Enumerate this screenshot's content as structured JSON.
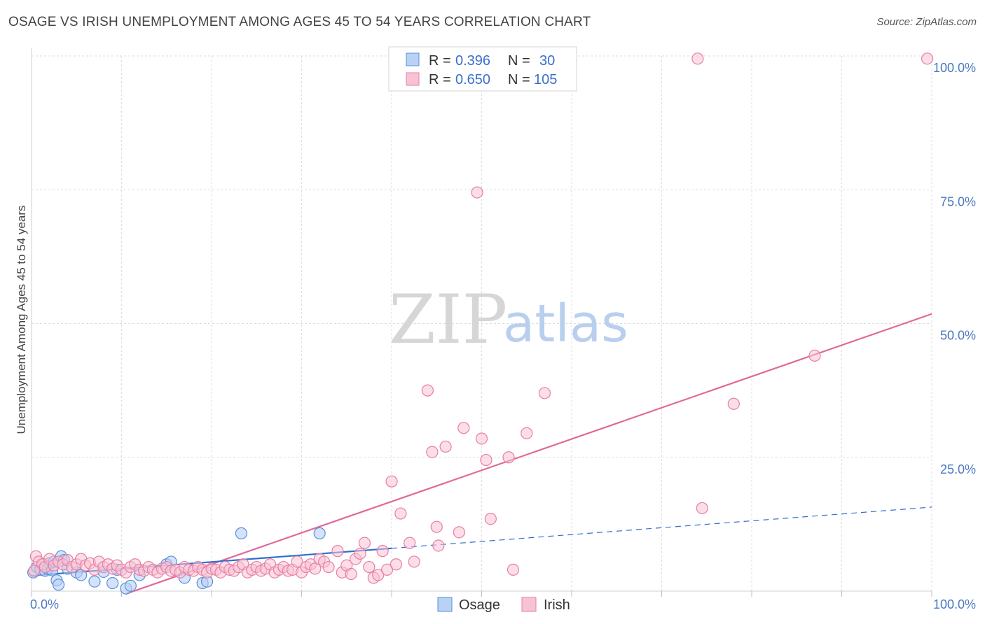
{
  "header": {
    "title": "OSAGE VS IRISH UNEMPLOYMENT AMONG AGES 45 TO 54 YEARS CORRELATION CHART",
    "source": "Source: ZipAtlas.com"
  },
  "watermark": {
    "zip": "ZIP",
    "atlas": "atlas"
  },
  "colors": {
    "osage": "#5b8fd8",
    "osage_fill": "#b8d1f5",
    "osage_line": "#2d6fcf",
    "irish": "#e87ea4",
    "irish_fill": "#f7c3d4",
    "irish_line": "#e0699a",
    "grid": "#dddddd",
    "tick": "#4a78c2"
  },
  "stats_legend": {
    "osage": {
      "r_label": "R =",
      "r_value": "0.396",
      "n_label": "N =",
      "n_value": "30"
    },
    "irish": {
      "r_label": "R =",
      "r_value": "0.650",
      "n_label": "N =",
      "n_value": "105"
    }
  },
  "chart_data": {
    "type": "scatter",
    "title": "OSAGE VS IRISH UNEMPLOYMENT AMONG AGES 45 TO 54 YEARS CORRELATION CHART",
    "xlabel": "",
    "ylabel": "Unemployment Among Ages 45 to 54 years",
    "xlim": [
      0,
      100
    ],
    "ylim": [
      0,
      100
    ],
    "x_tick_labels": [
      "0.0%",
      "100.0%"
    ],
    "y_ticks": [
      {
        "value": 100,
        "label": "100.0%"
      },
      {
        "value": 75,
        "label": "75.0%"
      },
      {
        "value": 50,
        "label": "50.0%"
      },
      {
        "value": 25,
        "label": "25.0%"
      }
    ],
    "legend": [
      "Osage",
      "Irish"
    ],
    "series": [
      {
        "name": "Osage",
        "r": 0.396,
        "n": 30,
        "trend": {
          "x": [
            0,
            40
          ],
          "y": [
            2.9,
            8.0
          ],
          "dashed_x": [
            40,
            100
          ],
          "dashed_y": [
            8.0,
            15.7
          ]
        },
        "points": [
          [
            0.2,
            3.5
          ],
          [
            0.6,
            4.5
          ],
          [
            1.0,
            4.0
          ],
          [
            1.3,
            5.0
          ],
          [
            1.5,
            3.8
          ],
          [
            1.8,
            4.2
          ],
          [
            2.0,
            5.2
          ],
          [
            2.3,
            3.9
          ],
          [
            2.5,
            5.5
          ],
          [
            2.8,
            2.0
          ],
          [
            3.0,
            1.2
          ],
          [
            3.3,
            6.5
          ],
          [
            3.6,
            5.8
          ],
          [
            4.0,
            4.2
          ],
          [
            5.0,
            3.5
          ],
          [
            5.5,
            3.0
          ],
          [
            7.0,
            1.8
          ],
          [
            8.0,
            3.6
          ],
          [
            9.0,
            1.5
          ],
          [
            9.5,
            4.0
          ],
          [
            10.5,
            0.5
          ],
          [
            11.0,
            1.0
          ],
          [
            12.0,
            3.0
          ],
          [
            15.0,
            5.0
          ],
          [
            15.5,
            5.5
          ],
          [
            17.0,
            2.5
          ],
          [
            19.0,
            1.5
          ],
          [
            19.5,
            1.8
          ],
          [
            23.3,
            10.8
          ],
          [
            32.0,
            10.8
          ]
        ]
      },
      {
        "name": "Irish",
        "r": 0.65,
        "n": 105,
        "trend": {
          "x": [
            10.5,
            100
          ],
          "y": [
            -0.5,
            51.8
          ]
        },
        "points": [
          [
            0.5,
            6.5
          ],
          [
            0.8,
            5.5
          ],
          [
            1.2,
            5.0
          ],
          [
            1.5,
            4.5
          ],
          [
            2.0,
            6.0
          ],
          [
            2.5,
            4.8
          ],
          [
            3.0,
            5.5
          ],
          [
            3.5,
            5.0
          ],
          [
            4.0,
            5.8
          ],
          [
            4.5,
            4.5
          ],
          [
            5.0,
            5.0
          ],
          [
            5.5,
            6.0
          ],
          [
            6.0,
            4.8
          ],
          [
            6.5,
            5.2
          ],
          [
            7.0,
            4.0
          ],
          [
            7.5,
            5.5
          ],
          [
            8.0,
            4.5
          ],
          [
            8.5,
            5.0
          ],
          [
            9.0,
            4.2
          ],
          [
            9.5,
            4.8
          ],
          [
            10.0,
            4.0
          ],
          [
            10.5,
            3.5
          ],
          [
            11.0,
            4.5
          ],
          [
            11.5,
            5.0
          ],
          [
            12.0,
            4.0
          ],
          [
            12.5,
            3.8
          ],
          [
            13.0,
            4.5
          ],
          [
            13.5,
            4.0
          ],
          [
            14.0,
            3.5
          ],
          [
            14.5,
            4.2
          ],
          [
            15.0,
            4.5
          ],
          [
            15.5,
            3.8
          ],
          [
            16.0,
            4.0
          ],
          [
            16.5,
            3.5
          ],
          [
            17.0,
            4.5
          ],
          [
            17.5,
            4.0
          ],
          [
            18.0,
            3.8
          ],
          [
            18.5,
            4.5
          ],
          [
            19.0,
            4.0
          ],
          [
            19.5,
            3.5
          ],
          [
            20.0,
            4.2
          ],
          [
            20.5,
            4.0
          ],
          [
            21.0,
            3.5
          ],
          [
            21.5,
            4.5
          ],
          [
            22.0,
            4.0
          ],
          [
            22.5,
            3.8
          ],
          [
            23.0,
            4.5
          ],
          [
            23.5,
            5.0
          ],
          [
            24.0,
            3.5
          ],
          [
            24.5,
            4.0
          ],
          [
            25.0,
            4.5
          ],
          [
            25.5,
            3.8
          ],
          [
            26.0,
            4.2
          ],
          [
            26.5,
            5.0
          ],
          [
            27.0,
            3.5
          ],
          [
            27.5,
            4.0
          ],
          [
            28.0,
            4.5
          ],
          [
            28.5,
            3.8
          ],
          [
            29.0,
            4.0
          ],
          [
            29.5,
            5.5
          ],
          [
            30.0,
            3.5
          ],
          [
            30.5,
            4.5
          ],
          [
            31.0,
            5.0
          ],
          [
            31.5,
            4.2
          ],
          [
            32.0,
            6.0
          ],
          [
            32.5,
            5.5
          ],
          [
            33.0,
            4.5
          ],
          [
            34.0,
            7.5
          ],
          [
            34.5,
            3.5
          ],
          [
            35.0,
            4.8
          ],
          [
            35.5,
            3.2
          ],
          [
            36.0,
            6.0
          ],
          [
            36.5,
            7.0
          ],
          [
            37.0,
            9.0
          ],
          [
            37.5,
            4.5
          ],
          [
            38.0,
            2.5
          ],
          [
            38.5,
            3.0
          ],
          [
            39.0,
            7.5
          ],
          [
            39.5,
            4.0
          ],
          [
            40.0,
            20.5
          ],
          [
            40.5,
            5.0
          ],
          [
            41.0,
            14.5
          ],
          [
            42.0,
            9.0
          ],
          [
            42.5,
            5.5
          ],
          [
            44.0,
            37.5
          ],
          [
            44.5,
            26.0
          ],
          [
            45.0,
            12.0
          ],
          [
            45.2,
            8.5
          ],
          [
            46.0,
            27.0
          ],
          [
            47.5,
            11.0
          ],
          [
            48.0,
            30.5
          ],
          [
            49.5,
            74.5
          ],
          [
            50.0,
            28.5
          ],
          [
            50.5,
            24.5
          ],
          [
            51.0,
            13.5
          ],
          [
            53.0,
            25.0
          ],
          [
            53.5,
            4.0
          ],
          [
            55.0,
            29.5
          ],
          [
            57.0,
            37.0
          ],
          [
            74.0,
            99.5
          ],
          [
            74.5,
            15.5
          ],
          [
            78.0,
            35.0
          ],
          [
            87.0,
            44.0
          ],
          [
            99.5,
            99.5
          ],
          [
            0.3,
            3.8
          ]
        ]
      }
    ]
  }
}
